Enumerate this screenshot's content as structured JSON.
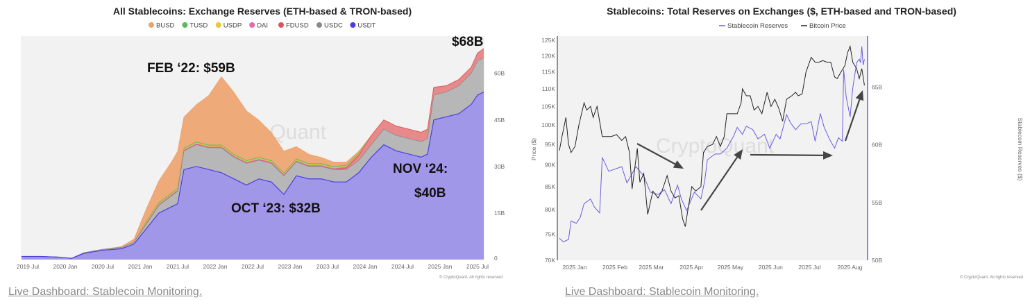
{
  "footer": {
    "left_link": "Live Dashboard: Stablecoin Monitoring.",
    "right_link": "Live Dashboard: Stablecoin Monitoring."
  },
  "chart_data": [
    {
      "type": "area",
      "stacked": true,
      "title": "All Stablecoins: Exchange Reserves (ETH-based & TRON-based)",
      "watermark": "CryptoQuant",
      "copyright": "© CryptoQuant. All rights reserved",
      "legend_position": "top",
      "legend": [
        "BUSD",
        "TUSD",
        "USDP",
        "DAI",
        "FDUSD",
        "USDC",
        "USDT"
      ],
      "x_ticks": [
        "2019 Jul",
        "2020 Jan",
        "2020 Jul",
        "2021 Jan",
        "2021 Jul",
        "2022 Jan",
        "2022 Jul",
        "2023 Jan",
        "2023 Jul",
        "2024 Jan",
        "2024 Jul",
        "2025 Jan",
        "2025 Jul"
      ],
      "y_ticks": [
        "0",
        "15B",
        "30B",
        "45B",
        "60B"
      ],
      "y_tick_values": [
        0,
        15,
        30,
        45,
        60
      ],
      "ylim": [
        0,
        72
      ],
      "grid": false,
      "annotations": [
        {
          "text": "FEB ‘22: $59B"
        },
        {
          "text": "OCT ‘23: $32B"
        },
        {
          "text": "NOV ‘24:",
          "text2": "$40B"
        },
        {
          "text": "$68B"
        }
      ],
      "x": [
        "2019-06",
        "2019-09",
        "2019-12",
        "2020-02",
        "2020-04",
        "2020-07",
        "2020-10",
        "2020-12",
        "2021-02",
        "2021-04",
        "2021-06",
        "2021-07",
        "2021-08",
        "2021-10",
        "2021-12",
        "2022-02",
        "2022-04",
        "2022-06",
        "2022-08",
        "2022-10",
        "2022-12",
        "2023-02",
        "2023-04",
        "2023-06",
        "2023-08",
        "2023-10",
        "2023-12",
        "2024-02",
        "2024-04",
        "2024-06",
        "2024-08",
        "2024-10",
        "2024-11",
        "2024-12",
        "2025-02",
        "2025-04",
        "2025-06",
        "2025-07",
        "2025-08"
      ],
      "series": [
        {
          "name": "USDT",
          "color": "#4b3ee0",
          "fill": "#a197e8",
          "values": [
            1,
            1,
            0.8,
            0.4,
            2,
            3,
            3.5,
            5,
            10,
            15,
            17,
            18,
            29,
            30,
            29,
            28,
            26,
            24,
            26,
            25,
            21,
            27,
            26,
            26,
            25,
            25,
            28,
            33,
            37,
            35,
            34,
            33,
            34,
            45,
            46,
            47,
            50,
            53,
            54
          ]
        },
        {
          "name": "USDC",
          "color": "#8a8a8a",
          "fill": "#b7b7b7",
          "values": [
            0,
            0,
            0,
            0,
            0.2,
            0.3,
            0.4,
            0.6,
            1.5,
            2.5,
            3.5,
            4,
            6,
            7,
            7,
            8,
            7,
            7,
            6,
            6,
            6,
            4.5,
            4,
            4,
            4,
            4,
            4,
            4,
            5,
            5,
            5,
            5,
            5,
            8,
            8,
            9,
            10,
            11,
            11
          ]
        },
        {
          "name": "FDUSD",
          "color": "#e0535a",
          "fill": "#e88a8c",
          "values": [
            0,
            0,
            0,
            0,
            0,
            0,
            0,
            0,
            0,
            0,
            0,
            0,
            0,
            0,
            0,
            0,
            0,
            0,
            0,
            0,
            0,
            0,
            0,
            0,
            0,
            0.5,
            1.5,
            3,
            3,
            3,
            3,
            3,
            3,
            2.5,
            2,
            2,
            2,
            2.5,
            3
          ]
        },
        {
          "name": "DAI",
          "color": "#e26aa8",
          "fill": "#e26aa8",
          "values": [
            0,
            0,
            0,
            0,
            0,
            0,
            0,
            0,
            0.3,
            0.3,
            0.3,
            0.3,
            0.3,
            0.3,
            0.3,
            0.3,
            0.3,
            0.3,
            0.3,
            0.3,
            0.3,
            0.3,
            0.3,
            0.3,
            0.3,
            0.3,
            0.3,
            0,
            0,
            0,
            0,
            0,
            0,
            0,
            0,
            0,
            0,
            0,
            0
          ]
        },
        {
          "name": "USDP",
          "color": "#e8c93a",
          "fill": "#e8c93a",
          "values": [
            0,
            0,
            0,
            0,
            0,
            0,
            0,
            0,
            0.3,
            0.3,
            0.3,
            0.3,
            0.3,
            0.3,
            0.3,
            0.3,
            0.3,
            0.3,
            0.3,
            0.3,
            0.3,
            0.3,
            0.3,
            0.3,
            0.3,
            0.3,
            0.3,
            0,
            0,
            0,
            0,
            0,
            0,
            0,
            0,
            0,
            0,
            0,
            0
          ]
        },
        {
          "name": "TUSD",
          "color": "#5cb85c",
          "fill": "#7cc47c",
          "values": [
            0,
            0,
            0,
            0,
            0,
            0,
            0,
            0,
            0.3,
            0.3,
            0.3,
            0.3,
            0.3,
            0.3,
            0.3,
            0.3,
            0.3,
            0.3,
            0.3,
            0.3,
            0.3,
            0.3,
            0.3,
            0.3,
            0.3,
            0.3,
            0.3,
            0,
            0,
            0,
            0,
            0,
            0,
            0,
            0,
            0,
            0,
            0,
            0
          ]
        },
        {
          "name": "BUSD",
          "color": "#f0a06a",
          "fill": "#eeaa78",
          "values": [
            0,
            0,
            0,
            0,
            0,
            0,
            0.3,
            1,
            4,
            7,
            10,
            12,
            10,
            12,
            16,
            22,
            20,
            16,
            12,
            9,
            7,
            4,
            3,
            2,
            1.5,
            1,
            0.5,
            0,
            0,
            0,
            0,
            0,
            0,
            0,
            0,
            0,
            0,
            0,
            0
          ]
        }
      ]
    },
    {
      "type": "line",
      "title": "Stablecoins: Total Reserves on Exchanges ($, ETH-based and TRON-based)",
      "watermark": "CryptoQuant",
      "copyright": "© CryptoQuant. All rights reserved",
      "legend_position": "top",
      "ylabel_left": "Price ($)",
      "ylabel_right": "Stablecoin Reserves ($)",
      "y_left_scale": "log",
      "y_left_ticks": [
        "70K",
        "75K",
        "80K",
        "85K",
        "90K",
        "95K",
        "100K",
        "105K",
        "110K",
        "115K",
        "120K",
        "125K"
      ],
      "y_left_tick_values": [
        70000,
        75000,
        80000,
        85000,
        90000,
        95000,
        100000,
        105000,
        110000,
        115000,
        120000,
        125000
      ],
      "y_left_lim": [
        70000,
        126400
      ],
      "y_right_ticks": [
        "50B",
        "55B",
        "60B",
        "65B"
      ],
      "y_right_tick_values": [
        50,
        55,
        60,
        65
      ],
      "y_right_lim": [
        50,
        69.4
      ],
      "x_ticks": [
        "2025 Jan",
        "2025 Feb",
        "2025 Mar",
        "2025 Apr",
        "2025 May",
        "2025 Jun",
        "2025 Jul",
        "2025 Aug"
      ],
      "x_tick_dates": [
        "2025-01-01",
        "2025-02-01",
        "2025-03-01",
        "2025-04-01",
        "2025-05-01",
        "2025-06-01",
        "2025-07-01",
        "2025-08-01"
      ],
      "grid": false,
      "series": [
        {
          "name": "Stablecoin Reserves",
          "axis": "right",
          "color": "#6a5de0",
          "x": [
            "2025-01-01",
            "2025-01-04",
            "2025-01-08",
            "2025-01-10",
            "2025-01-14",
            "2025-01-17",
            "2025-01-20",
            "2025-01-25",
            "2025-01-28",
            "2025-02-01",
            "2025-02-03",
            "2025-02-08",
            "2025-02-13",
            "2025-02-18",
            "2025-02-22",
            "2025-03-01",
            "2025-03-07",
            "2025-03-12",
            "2025-03-18",
            "2025-03-23",
            "2025-03-28",
            "2025-04-02",
            "2025-04-05",
            "2025-04-09",
            "2025-04-15",
            "2025-04-20",
            "2025-04-23",
            "2025-04-25",
            "2025-05-01",
            "2025-05-05",
            "2025-05-10",
            "2025-05-15",
            "2025-05-18",
            "2025-05-22",
            "2025-05-25",
            "2025-05-30",
            "2025-06-03",
            "2025-06-08",
            "2025-06-12",
            "2025-06-17",
            "2025-06-20",
            "2025-06-25",
            "2025-06-28",
            "2025-07-02",
            "2025-07-06",
            "2025-07-10",
            "2025-07-14",
            "2025-07-17",
            "2025-07-21",
            "2025-07-24",
            "2025-07-28",
            "2025-08-01",
            "2025-08-04",
            "2025-08-07",
            "2025-08-08",
            "2025-08-10",
            "2025-08-13",
            "2025-08-15",
            "2025-08-18",
            "2025-08-20",
            "2025-08-21",
            "2025-08-22",
            "2025-08-23",
            "2025-08-24"
          ],
          "values": [
            51.9,
            51.6,
            51.8,
            53.4,
            53.2,
            53.7,
            54.9,
            55.3,
            54.6,
            54.1,
            58.9,
            57.7,
            57.9,
            58.1,
            56.7,
            58.1,
            57.3,
            55.9,
            55.7,
            56.1,
            54.9,
            56.5,
            55.3,
            54.3,
            55.9,
            55.3,
            56.9,
            58.7,
            59.2,
            59.2,
            59.7,
            60.7,
            61.5,
            60.9,
            61.6,
            61.3,
            60.5,
            60.9,
            59.7,
            60.9,
            60.5,
            62.6,
            61.9,
            61.3,
            61.8,
            61.8,
            62.0,
            60.3,
            62.7,
            61.5,
            60.5,
            59.7,
            60.6,
            60.3,
            66.5,
            64.1,
            62.4,
            64.9,
            67.1,
            67.4,
            67.1,
            68.5,
            66.9,
            67.4
          ]
        },
        {
          "name": "Bitcoin Price",
          "axis": "left",
          "color": "#222222",
          "x": [
            "2025-01-01",
            "2025-01-03",
            "2025-01-06",
            "2025-01-08",
            "2025-01-10",
            "2025-01-13",
            "2025-01-16",
            "2025-01-20",
            "2025-01-22",
            "2025-01-25",
            "2025-01-27",
            "2025-01-30",
            "2025-02-03",
            "2025-02-06",
            "2025-02-10",
            "2025-02-14",
            "2025-02-18",
            "2025-02-21",
            "2025-02-24",
            "2025-02-26",
            "2025-03-02",
            "2025-03-04",
            "2025-03-07",
            "2025-03-10",
            "2025-03-14",
            "2025-03-18",
            "2025-03-21",
            "2025-03-25",
            "2025-03-28",
            "2025-03-31",
            "2025-04-03",
            "2025-04-06",
            "2025-04-08",
            "2025-04-10",
            "2025-04-13",
            "2025-04-16",
            "2025-04-20",
            "2025-04-22",
            "2025-04-25",
            "2025-04-29",
            "2025-05-02",
            "2025-05-05",
            "2025-05-08",
            "2025-05-10",
            "2025-05-14",
            "2025-05-18",
            "2025-05-21",
            "2025-05-22",
            "2025-05-25",
            "2025-05-28",
            "2025-05-31",
            "2025-06-03",
            "2025-06-06",
            "2025-06-10",
            "2025-06-13",
            "2025-06-16",
            "2025-06-19",
            "2025-06-22",
            "2025-06-25",
            "2025-06-29",
            "2025-07-02",
            "2025-07-04",
            "2025-07-07",
            "2025-07-10",
            "2025-07-14",
            "2025-07-17",
            "2025-07-20",
            "2025-07-23",
            "2025-07-26",
            "2025-07-29",
            "2025-08-01",
            "2025-08-03",
            "2025-08-06",
            "2025-08-09",
            "2025-08-11",
            "2025-08-13",
            "2025-08-15",
            "2025-08-18",
            "2025-08-20",
            "2025-08-22",
            "2025-08-24"
          ],
          "values": [
            93500,
            97000,
            102000,
            95000,
            93000,
            94500,
            100000,
            106000,
            104000,
            105000,
            102000,
            105000,
            97000,
            97000,
            97000,
            97500,
            96000,
            97000,
            93000,
            84500,
            94000,
            86000,
            88000,
            79000,
            84000,
            82500,
            84000,
            87500,
            84000,
            82500,
            83000,
            78000,
            76500,
            80000,
            85000,
            84000,
            85000,
            93000,
            94500,
            95000,
            97000,
            94500,
            97000,
            103000,
            103000,
            103000,
            106000,
            110000,
            108000,
            108000,
            104000,
            105000,
            103000,
            109000,
            105000,
            107000,
            104500,
            101000,
            107000,
            108000,
            109000,
            108000,
            108500,
            115000,
            119500,
            118000,
            118000,
            118500,
            118000,
            118000,
            113500,
            113000,
            115000,
            117000,
            121000,
            123000,
            118000,
            116000,
            113000,
            116000,
            111000
          ]
        }
      ]
    }
  ]
}
